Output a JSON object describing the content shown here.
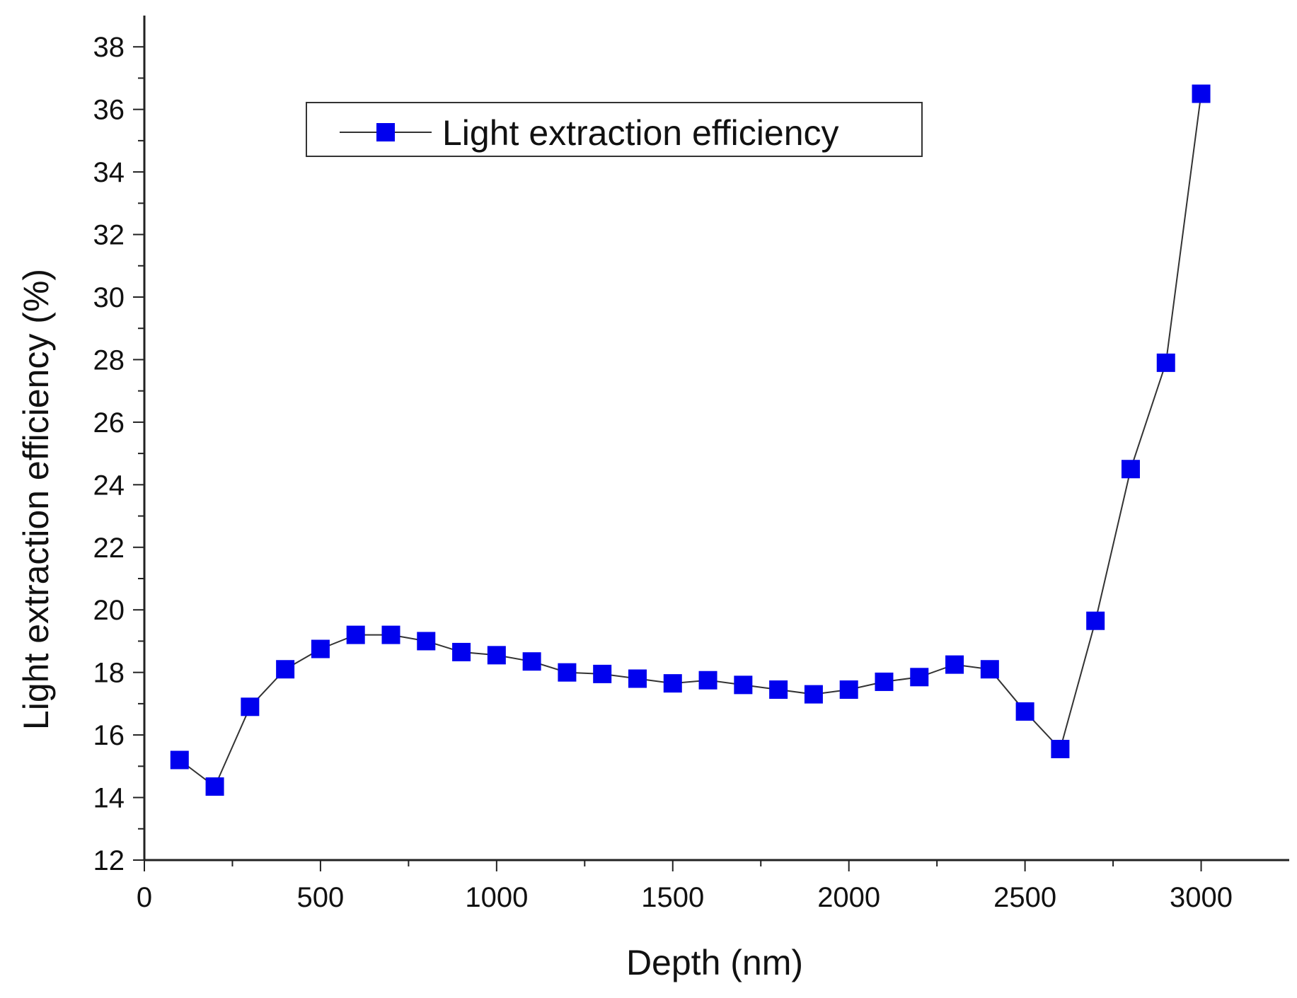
{
  "chart_data": {
    "type": "line",
    "title": "",
    "xlabel": "Depth (nm)",
    "ylabel": "Light extraction efficiency (%)",
    "xlim": [
      0,
      3250
    ],
    "ylim": [
      12,
      39
    ],
    "x_ticks": [
      0,
      500,
      1000,
      1500,
      2000,
      2500,
      3000
    ],
    "x_tick_labels": [
      "0",
      "500",
      "1000",
      "1500",
      "2000",
      "2500",
      "3000"
    ],
    "y_ticks": [
      12,
      14,
      16,
      18,
      20,
      22,
      24,
      26,
      28,
      30,
      32,
      34,
      36,
      38
    ],
    "y_tick_labels": [
      "12",
      "14",
      "16",
      "18",
      "20",
      "22",
      "24",
      "26",
      "28",
      "30",
      "32",
      "34",
      "36",
      "38"
    ],
    "grid": false,
    "legend_position": "top-center",
    "series": [
      {
        "name": "Light extraction efficiency",
        "marker": "square",
        "marker_color": "#0000ee",
        "line_color": "#333333",
        "x": [
          100,
          200,
          300,
          400,
          500,
          600,
          700,
          800,
          900,
          1000,
          1100,
          1200,
          1300,
          1400,
          1500,
          1600,
          1700,
          1800,
          1900,
          2000,
          2100,
          2200,
          2300,
          2400,
          2500,
          2600,
          2700,
          2800,
          2900,
          3000
        ],
        "values": [
          15.2,
          14.35,
          16.9,
          18.1,
          18.75,
          19.2,
          19.2,
          19.0,
          18.65,
          18.55,
          18.35,
          18.0,
          17.95,
          17.8,
          17.65,
          17.75,
          17.6,
          17.45,
          17.3,
          17.45,
          17.7,
          17.85,
          18.25,
          18.1,
          16.75,
          15.55,
          19.65,
          24.5,
          27.9,
          36.5
        ]
      }
    ]
  }
}
